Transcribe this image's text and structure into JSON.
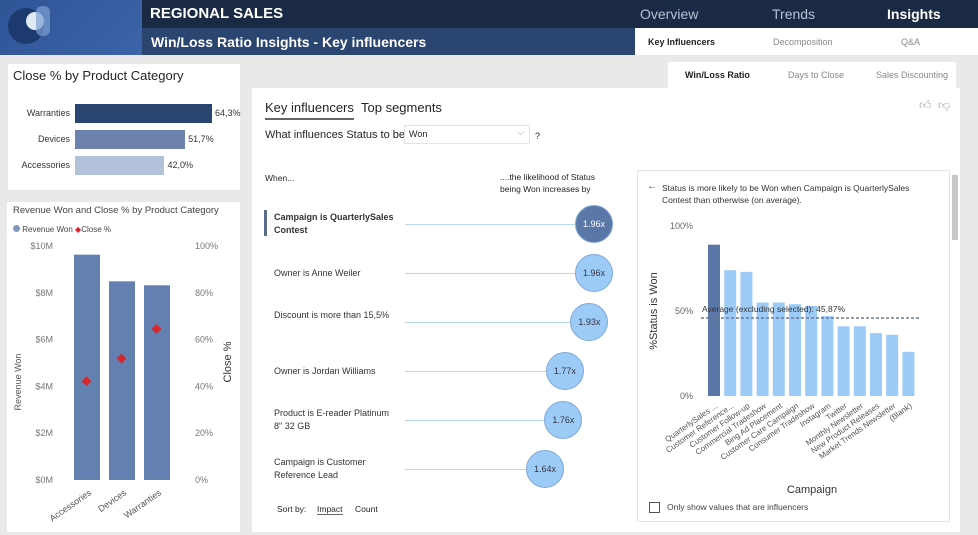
{
  "header": {
    "title": "REGIONAL SALES",
    "subtitle": "Win/Loss Ratio Insights - Key influencers",
    "nav": [
      "Overview",
      "Trends",
      "Insights"
    ],
    "subnav": [
      "Key Influencers",
      "Decomposition",
      "Q&A"
    ]
  },
  "close_card": {
    "title": "Close % by Product Category",
    "items": [
      {
        "label": "Warranties",
        "value": 64.3,
        "text": "64,3%",
        "color": "#2b4571"
      },
      {
        "label": "Devices",
        "value": 51.7,
        "text": "51,7%",
        "color": "#6d83ad"
      },
      {
        "label": "Accessories",
        "value": 42.0,
        "text": "42,0%",
        "color": "#b4c1da"
      }
    ]
  },
  "chart_data": [
    {
      "type": "bar",
      "title": "Revenue Won and Close % by Product Category",
      "legend": [
        "Revenue Won",
        "Close %"
      ],
      "categories": [
        "Accessories",
        "Devices",
        "Warranties"
      ],
      "series": [
        {
          "name": "Revenue Won",
          "values": [
            9.63,
            8.49,
            8.32
          ],
          "unit": "$M"
        },
        {
          "name": "Close %",
          "values": [
            42.0,
            51.7,
            64.3
          ],
          "unit": "%"
        }
      ],
      "ylabel": "Revenue Won",
      "y2label": "Close %",
      "ylim": [
        0,
        10
      ],
      "y2lim": [
        0,
        100
      ],
      "yticks": [
        "$0M",
        "$2M",
        "$4M",
        "$6M",
        "$8M",
        "$10M"
      ],
      "y2ticks": [
        "0%",
        "20%",
        "40%",
        "60%",
        "80%",
        "100%"
      ]
    },
    {
      "type": "bar",
      "xlabel": "Campaign",
      "ylabel": "%Status is Won",
      "ylim": [
        0,
        100
      ],
      "yticks": [
        "0%",
        "50%",
        "100%"
      ],
      "categories": [
        "QuarterlySales ...",
        "Customer Reference...",
        "Customer Follow-up",
        "Commercial Tradeshow",
        "Bing Ad Placement",
        "Customer Care Campaign",
        "Consumer Tradeshow",
        "Instagram",
        "Twitter",
        "Monthly Newsletter",
        "New Product Releases",
        "Market Trends Newsletter",
        "(Blank)"
      ],
      "values": [
        89,
        74,
        73,
        55,
        55,
        54,
        53,
        47,
        41,
        41,
        37,
        36,
        26
      ],
      "selected": 0,
      "average": 45.87,
      "average_label": "Average (excluding selected): 45,87%"
    }
  ],
  "view_tabs": [
    "Win/Loss Ratio",
    "Days to Close",
    "Sales Discounting"
  ],
  "ki": {
    "tabs": [
      "Key influencers",
      "Top segments"
    ],
    "question": "What influences Status to be",
    "value": "Won",
    "q": "?",
    "when": "When...",
    "likelihood": "....the likelihood of Status being Won increases by",
    "rows": [
      {
        "text": "Campaign is QuarterlySales Contest",
        "value": 1.96,
        "label": "1.96x"
      },
      {
        "text": "Owner is Anne Weiler",
        "value": 1.96,
        "label": "1.96x"
      },
      {
        "text": "Discount is more than 15,5%",
        "value": 1.93,
        "label": "1.93x"
      },
      {
        "text": "Owner is Jordan Williams",
        "value": 1.77,
        "label": "1.77x"
      },
      {
        "text": "Product is E-reader Platinum 8\" 32 GB",
        "value": 1.76,
        "label": "1.76x"
      },
      {
        "text": "Campaign is Customer Reference Lead",
        "value": 1.64,
        "label": "1.64x"
      }
    ],
    "sort_label": "Sort by:",
    "sort_options": [
      "Impact",
      "Count"
    ],
    "detail": "Status is more likely to be Won when Campaign is QuarterlySales Contest than otherwise (on average).",
    "checkbox": "Only show values that are influencers"
  },
  "colors": {
    "dark": "#5b77a8",
    "light": "#9dcbf7",
    "marker": "#d9262c"
  }
}
